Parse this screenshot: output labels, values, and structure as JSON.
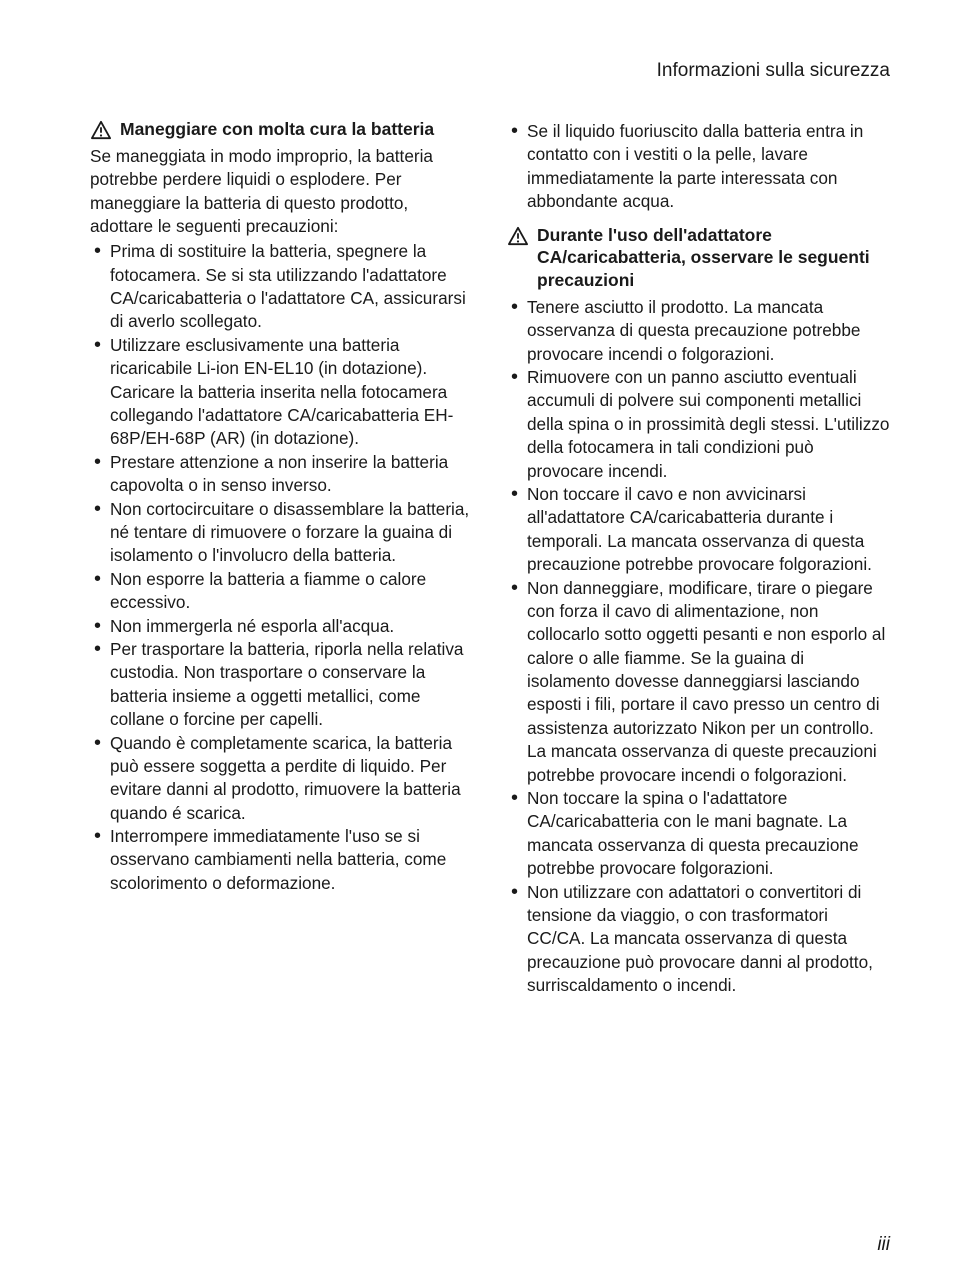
{
  "header": "Informazioni sulla sicurezza",
  "pageNumber": "iii",
  "left": {
    "title": "Maneggiare con molta cura la batteria",
    "intro": "Se maneggiata in modo improprio, la batteria potrebbe perdere liquidi o esplodere. Per maneggiare la batteria di questo prodotto, adottare le seguenti precauzioni:",
    "bullets": [
      "Prima di sostituire la batteria, spegnere la fotocamera. Se si sta utilizzando l'adattatore CA/caricabatteria o l'adattatore CA, assicurarsi di averlo scollegato.",
      "Utilizzare esclusivamente una batteria ricaricabile Li-ion EN-EL10 (in dotazione). Caricare la batteria inserita nella fotocamera collegando l'adattatore CA/caricabatteria EH-68P/EH-68P (AR) (in dotazione).",
      "Prestare attenzione a non inserire la batteria capovolta o in senso inverso.",
      "Non cortocircuitare o disassemblare la batteria, né tentare di rimuovere o forzare la guaina di isolamento o l'involucro della batteria.",
      "Non esporre la batteria a fiamme o calore eccessivo.",
      "Non immergerla né esporla all'acqua.",
      "Per trasportare la batteria, riporla nella relativa custodia. Non trasportare o conservare la batteria insieme a oggetti metallici, come collane o forcine per capelli.",
      "Quando è completamente scarica, la batteria può essere soggetta a perdite di liquido. Per evitare danni al prodotto, rimuovere la batteria quando é scarica.",
      "Interrompere immediatamente l'uso se si osservano cambiamenti nella batteria, come scolorimento o deformazione."
    ]
  },
  "right": {
    "preBullet": "Se il liquido fuoriuscito dalla batteria entra in contatto con i vestiti o la pelle, lavare immediatamente la parte interessata con abbondante acqua.",
    "title": "Durante l'uso dell'adattatore CA/caricabatteria, osservare le seguenti precauzioni",
    "bullets": [
      "Tenere asciutto il prodotto. La mancata osservanza di questa precauzione potrebbe provocare incendi o folgorazioni.",
      "Rimuovere con un panno asciutto eventuali accumuli di polvere sui componenti metallici della spina o in prossimità degli stessi. L'utilizzo della fotocamera in tali condizioni può provocare incendi.",
      "Non toccare il cavo e non avvicinarsi all'adattatore CA/caricabatteria durante i temporali. La mancata osservanza di questa precauzione potrebbe provocare folgorazioni.",
      "Non danneggiare, modificare, tirare o piegare con forza il cavo di alimentazione, non collocarlo sotto oggetti pesanti e non esporlo al calore o alle fiamme. Se la guaina di isolamento dovesse danneggiarsi lasciando esposti i fili, portare il cavo presso un centro di assistenza autorizzato Nikon per un controllo. La mancata osservanza di queste precauzioni potrebbe provocare incendi o folgorazioni.",
      "Non toccare la spina o l'adattatore CA/caricabatteria con le mani bagnate. La mancata osservanza di questa precauzione potrebbe provocare folgorazioni.",
      "Non utilizzare con adattatori o convertitori di tensione da viaggio, o con trasformatori CC/CA. La mancata osservanza di questa precauzione può provocare danni al prodotto, surriscaldamento o incendi."
    ]
  },
  "style": {
    "textColor": "#1a1a1a",
    "background": "#ffffff",
    "bodyFontSize": 17.2,
    "headerFontSize": 19,
    "iconStroke": "#1a1a1a"
  }
}
